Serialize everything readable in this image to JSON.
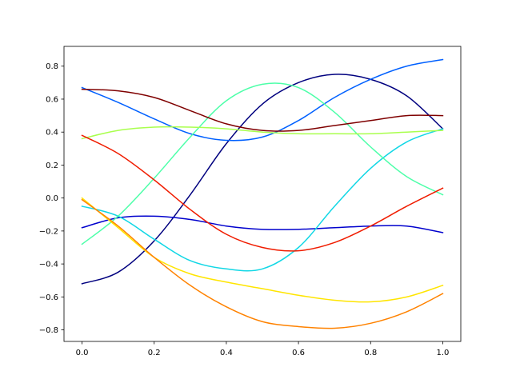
{
  "chart_data": {
    "type": "line",
    "title": "",
    "xlabel": "",
    "ylabel": "",
    "xlim": [
      -0.05,
      1.05
    ],
    "ylim": [
      -0.87,
      0.92
    ],
    "grid": false,
    "legend": "none",
    "x_ticks": [
      0.0,
      0.2,
      0.4,
      0.6,
      0.8,
      1.0
    ],
    "x_tick_labels": [
      "0.0",
      "0.2",
      "0.4",
      "0.6",
      "0.8",
      "1.0"
    ],
    "y_ticks": [
      -0.8,
      -0.6,
      -0.4,
      -0.2,
      0.0,
      0.2,
      0.4,
      0.6,
      0.8
    ],
    "y_tick_labels": [
      "−0.8",
      "−0.6",
      "−0.4",
      "−0.2",
      "0.0",
      "0.2",
      "0.4",
      "0.6",
      "0.8"
    ],
    "x": [
      0.0,
      0.1,
      0.2,
      0.3,
      0.4,
      0.5,
      0.6,
      0.7,
      0.8,
      0.9,
      1.0
    ],
    "series": [
      {
        "color": "#00007f",
        "values": [
          -0.52,
          -0.45,
          -0.26,
          0.02,
          0.33,
          0.57,
          0.7,
          0.75,
          0.72,
          0.62,
          0.42
        ]
      },
      {
        "color": "#0000cd",
        "values": [
          -0.18,
          -0.12,
          -0.11,
          -0.13,
          -0.17,
          -0.19,
          -0.19,
          -0.18,
          -0.17,
          -0.17,
          -0.21
        ]
      },
      {
        "color": "#0060ff",
        "values": [
          0.67,
          0.58,
          0.48,
          0.39,
          0.35,
          0.37,
          0.47,
          0.61,
          0.72,
          0.8,
          0.84
        ]
      },
      {
        "color": "#11d7e5",
        "values": [
          -0.05,
          -0.11,
          -0.25,
          -0.38,
          -0.43,
          -0.43,
          -0.3,
          -0.05,
          0.18,
          0.34,
          0.42
        ]
      },
      {
        "color": "#4dffa9",
        "values": [
          -0.28,
          -0.11,
          0.12,
          0.37,
          0.59,
          0.69,
          0.67,
          0.52,
          0.31,
          0.13,
          0.02
        ]
      },
      {
        "color": "#a9ff4d",
        "values": [
          0.36,
          0.41,
          0.43,
          0.43,
          0.42,
          0.4,
          0.39,
          0.39,
          0.39,
          0.4,
          0.41
        ]
      },
      {
        "color": "#ffe500",
        "values": [
          0.0,
          -0.18,
          -0.36,
          -0.46,
          -0.51,
          -0.55,
          -0.59,
          -0.62,
          -0.63,
          -0.6,
          -0.53
        ]
      },
      {
        "color": "#ff8200",
        "values": [
          -0.01,
          -0.17,
          -0.36,
          -0.53,
          -0.66,
          -0.75,
          -0.78,
          -0.79,
          -0.76,
          -0.69,
          -0.58
        ]
      },
      {
        "color": "#f01c00",
        "values": [
          0.38,
          0.27,
          0.11,
          -0.07,
          -0.22,
          -0.3,
          -0.32,
          -0.27,
          -0.17,
          -0.05,
          0.06
        ]
      },
      {
        "color": "#7f0000",
        "values": [
          0.66,
          0.65,
          0.61,
          0.53,
          0.45,
          0.41,
          0.41,
          0.44,
          0.47,
          0.5,
          0.5
        ]
      }
    ]
  }
}
